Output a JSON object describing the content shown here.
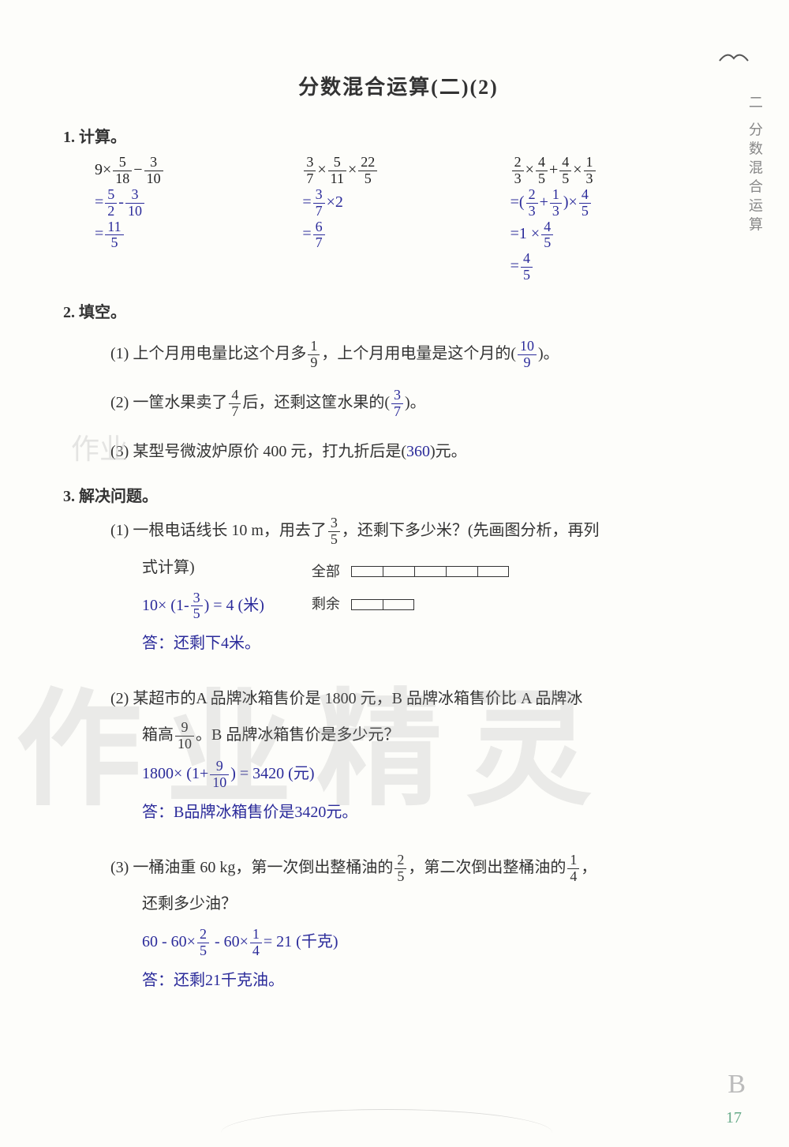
{
  "title": "分数混合运算(二)(2)",
  "side_label": "二 分数混合运算",
  "page_number": "17",
  "corner_letter": "B",
  "q1": {
    "label": "1. 计算。",
    "col1": {
      "expr_parts": [
        "9×",
        "5",
        "18",
        "−",
        "3",
        "10"
      ],
      "step1_parts": [
        "=",
        "5",
        "2",
        "-",
        "3",
        "10"
      ],
      "step2_parts": [
        "=",
        "11",
        "5"
      ]
    },
    "col2": {
      "expr_parts": [
        "3",
        "7",
        "×",
        "5",
        "11",
        "×",
        "22",
        "5"
      ],
      "step1_parts": [
        "=",
        "3",
        "7",
        "×2"
      ],
      "step2_parts": [
        "=",
        "6",
        "7"
      ]
    },
    "col3": {
      "expr_parts": [
        "2",
        "3",
        "×",
        "4",
        "5",
        "+",
        "4",
        "5",
        "×",
        "1",
        "3"
      ],
      "step1_parts": [
        "=(",
        "2",
        "3",
        "+",
        "1",
        "3",
        ")×",
        "4",
        "5"
      ],
      "step2_parts": [
        "=1 ×",
        "4",
        "5"
      ],
      "step3_parts": [
        "=",
        "4",
        "5"
      ]
    }
  },
  "q2": {
    "label": "2. 填空。",
    "items": [
      {
        "pre": "(1) 上个月用电量比这个月多",
        "fn": "1",
        "fd": "9",
        "mid": "，上个月用电量是这个月的(",
        "an": "10",
        "ad": "9",
        "post": ")。"
      },
      {
        "pre": "(2) 一筐水果卖了",
        "fn": "4",
        "fd": "7",
        "mid": "后，还剩这筐水果的(",
        "an": "3",
        "ad": "7",
        "post": ")。"
      },
      {
        "pre": "(3) 某型号微波炉原价 400 元，打九折后是(",
        "ans_plain": "360",
        "post": ")元。"
      }
    ]
  },
  "q3": {
    "label": "3. 解决问题。",
    "p1": {
      "line1_a": "(1) 一根电话线长 10 m，用去了",
      "fn": "3",
      "fd": "5",
      "line1_b": "，还剩下多少米？(先画图分析，再列",
      "line2": "式计算)",
      "diag_all": "全部",
      "diag_rest": "剩余",
      "all_segments": 5,
      "rest_segments": 2,
      "work_a": "10× (1-",
      "wn": "3",
      "wd": "5",
      "work_b": ") = 4 (米)",
      "answer": "答：还剩下4米。"
    },
    "p2": {
      "line1": "(2) 某超市的A 品牌冰箱售价是 1800 元，B 品牌冰箱售价比 A 品牌冰",
      "line2_a": "箱高",
      "fn": "9",
      "fd": "10",
      "line2_b": "。B 品牌冰箱售价是多少元？",
      "work_a": "1800× (1+",
      "wn": "9",
      "wd": "10",
      "work_b": ") = 3420 (元)",
      "answer": "答：B品牌冰箱售价是3420元。"
    },
    "p3": {
      "line1_a": "(3) 一桶油重 60 kg，第一次倒出整桶油的",
      "f1n": "2",
      "f1d": "5",
      "line1_b": "，第二次倒出整桶油的",
      "f2n": "1",
      "f2d": "4",
      "line1_c": "，",
      "line2": "还剩多少油？",
      "work_a": "60 - 60×",
      "w1n": "2",
      "w1d": "5",
      "work_b": " - 60×",
      "w2n": "1",
      "w2d": "4",
      "work_c": "= 21 (千克)",
      "answer": "答：还剩21千克油。"
    }
  },
  "watermark_small": "作业",
  "watermark_big": "作业精灵"
}
